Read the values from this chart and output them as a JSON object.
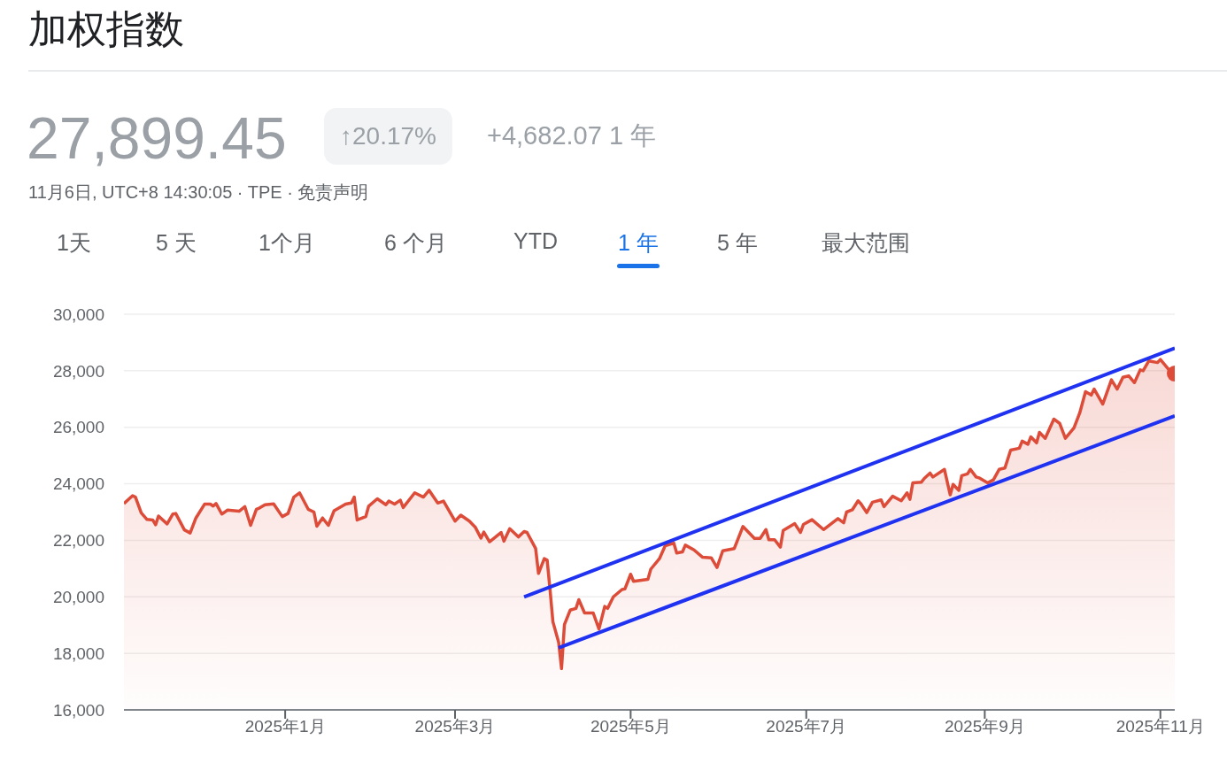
{
  "chart_data": {
    "type": "area",
    "title": "加权指数",
    "annotations": [
      "27,899.45",
      "↑20.17%",
      "+4,682.07 1 年",
      "11月6日, UTC+8 14:30:05 · TPE · 免责声明",
      "1天",
      "5 天",
      "1个月",
      "6 个月",
      "YTD",
      "1 年",
      "5 年",
      "最大范围"
    ],
    "xlim": [
      "2024-11-06",
      "2025-11-06"
    ],
    "xticks": [
      {
        "value": "2025-01",
        "label": "2025年1月"
      },
      {
        "value": "2025-03",
        "label": "2025年3月"
      },
      {
        "value": "2025-05",
        "label": "2025年5月"
      },
      {
        "value": "2025-07",
        "label": "2025年7月"
      },
      {
        "value": "2025-09",
        "label": "2025年9月"
      },
      {
        "value": "2025-11",
        "label": "2025年11月"
      }
    ],
    "ylim": [
      16000,
      30000
    ],
    "yticks": [
      {
        "value": 16000,
        "label": "16,000"
      },
      {
        "value": 18000,
        "label": "18,000"
      },
      {
        "value": 20000,
        "label": "20,000"
      },
      {
        "value": 22000,
        "label": "22,000"
      },
      {
        "value": 24000,
        "label": "24,000"
      },
      {
        "value": 26000,
        "label": "26,000"
      },
      {
        "value": 28000,
        "label": "28,000"
      },
      {
        "value": 30000,
        "label": "30,000"
      }
    ],
    "grid": "y",
    "legend": false,
    "line_style": "solid",
    "series": [
      {
        "color": "#dd4b39",
        "x": [
          "2024-11-06",
          "2024-11-09",
          "2024-11-10",
          "2024-11-12",
          "2024-11-14",
          "2024-11-16",
          "2024-11-17",
          "2024-11-18",
          "2024-11-21",
          "2024-11-23",
          "2024-11-24",
          "2024-11-27",
          "2024-11-29",
          "2024-12-01",
          "2024-12-04",
          "2024-12-06",
          "2024-12-07",
          "2024-12-08",
          "2024-12-10",
          "2024-12-12",
          "2024-12-16",
          "2024-12-18",
          "2024-12-20",
          "2024-12-22",
          "2024-12-23",
          "2024-12-25",
          "2024-12-28",
          "2024-12-31",
          "2025-01-02",
          "2025-01-04",
          "2025-01-06",
          "2025-01-09",
          "2025-01-11",
          "2025-01-12",
          "2025-01-14",
          "2025-01-16",
          "2025-01-18",
          "2025-01-22",
          "2025-01-24",
          "2025-01-25",
          "2025-01-26",
          "2025-01-29",
          "2025-01-30",
          "2025-02-02",
          "2025-02-05",
          "2025-02-06",
          "2025-02-08",
          "2025-02-10",
          "2025-02-11",
          "2025-02-15",
          "2025-02-18",
          "2025-02-20",
          "2025-02-23",
          "2025-02-25",
          "2025-03-01",
          "2025-03-03",
          "2025-03-06",
          "2025-03-08",
          "2025-03-10",
          "2025-03-11",
          "2025-03-13",
          "2025-03-15",
          "2025-03-17",
          "2025-03-18",
          "2025-03-20",
          "2025-03-23",
          "2025-03-25",
          "2025-03-26",
          "2025-03-29",
          "2025-03-30",
          "2025-04-01",
          "2025-04-02",
          "2025-04-03",
          "2025-04-04",
          "2025-04-06",
          "2025-04-07",
          "2025-04-08",
          "2025-04-10",
          "2025-04-12",
          "2025-04-13",
          "2025-04-15",
          "2025-04-18",
          "2025-04-20",
          "2025-04-22",
          "2025-04-23",
          "2025-04-25",
          "2025-04-28",
          "2025-04-29",
          "2025-05-01",
          "2025-05-02",
          "2025-05-07",
          "2025-05-08",
          "2025-05-11",
          "2025-05-13",
          "2025-05-16",
          "2025-05-17",
          "2025-05-19",
          "2025-05-20",
          "2025-05-23",
          "2025-05-26",
          "2025-05-29",
          "2025-05-31",
          "2025-06-02",
          "2025-06-06",
          "2025-06-09",
          "2025-06-13",
          "2025-06-15",
          "2025-06-17",
          "2025-06-18",
          "2025-06-20",
          "2025-06-22",
          "2025-06-23",
          "2025-06-27",
          "2025-06-29",
          "2025-06-30",
          "2025-07-03",
          "2025-07-07",
          "2025-07-12",
          "2025-07-14",
          "2025-07-15",
          "2025-07-17",
          "2025-07-19",
          "2025-07-20",
          "2025-07-22",
          "2025-07-24",
          "2025-07-27",
          "2025-07-28",
          "2025-07-31",
          "2025-08-03",
          "2025-08-05",
          "2025-08-06",
          "2025-08-07",
          "2025-08-10",
          "2025-08-11",
          "2025-08-13",
          "2025-08-14",
          "2025-08-18",
          "2025-08-20",
          "2025-08-21",
          "2025-08-23",
          "2025-08-24",
          "2025-08-26",
          "2025-08-27",
          "2025-08-29",
          "2025-08-30",
          "2025-09-02",
          "2025-09-04",
          "2025-09-06",
          "2025-09-08",
          "2025-09-10",
          "2025-09-13",
          "2025-09-14",
          "2025-09-16",
          "2025-09-17",
          "2025-09-19",
          "2025-09-20",
          "2025-09-22",
          "2025-09-25",
          "2025-09-27",
          "2025-09-29",
          "2025-10-02",
          "2025-10-04",
          "2025-10-06",
          "2025-10-08",
          "2025-10-09",
          "2025-10-12",
          "2025-10-15",
          "2025-10-17",
          "2025-10-19",
          "2025-10-21",
          "2025-10-23",
          "2025-10-25",
          "2025-10-26",
          "2025-10-28",
          "2025-10-31",
          "2025-11-01",
          "2025-11-04",
          "2025-11-06"
        ],
        "values": [
          23300,
          23580,
          23530,
          22970,
          22740,
          22720,
          22550,
          22860,
          22580,
          22930,
          22950,
          22370,
          22260,
          22790,
          23280,
          23280,
          23210,
          23300,
          22930,
          23070,
          23030,
          23190,
          22530,
          23100,
          23140,
          23260,
          23290,
          22840,
          22950,
          23530,
          23680,
          23100,
          23000,
          22500,
          22790,
          22530,
          23050,
          23280,
          23320,
          23530,
          22720,
          22840,
          23210,
          23470,
          23260,
          23390,
          23280,
          23420,
          23160,
          23680,
          23530,
          23770,
          23320,
          23390,
          22680,
          22890,
          22680,
          22470,
          22080,
          22290,
          21950,
          22110,
          22280,
          21970,
          22410,
          22120,
          22310,
          22280,
          21710,
          20830,
          21350,
          21300,
          20260,
          19120,
          18390,
          17460,
          19020,
          19530,
          19590,
          19900,
          19430,
          19430,
          18860,
          19660,
          19590,
          20000,
          20260,
          20280,
          20800,
          20550,
          20620,
          20980,
          21350,
          21810,
          21900,
          21550,
          21590,
          21830,
          21660,
          21400,
          21380,
          21040,
          21630,
          21710,
          22490,
          22070,
          22070,
          22380,
          22020,
          22020,
          21760,
          22350,
          22590,
          22280,
          22560,
          22730,
          22380,
          22770,
          22620,
          23000,
          23080,
          23400,
          23290,
          22980,
          23350,
          23430,
          23190,
          23560,
          23400,
          23680,
          23450,
          24030,
          24060,
          24190,
          24380,
          24240,
          24510,
          23610,
          23980,
          23770,
          24290,
          24350,
          24510,
          24240,
          24210,
          24030,
          24140,
          24510,
          24560,
          25190,
          25260,
          25510,
          25400,
          25660,
          25450,
          25820,
          25610,
          26290,
          26140,
          25610,
          25980,
          26510,
          27260,
          27140,
          27350,
          26820,
          27680,
          27350,
          27770,
          27820,
          27580,
          28030,
          28000,
          28350,
          28290,
          28400,
          28030,
          27900
        ]
      },
      {
        "type": "line",
        "color": "#1f32f2",
        "x": [
          "2025-03-25",
          "2025-11-06"
        ],
        "values": [
          20000,
          28800
        ]
      },
      {
        "type": "line",
        "color": "#1f32f2",
        "x": [
          "2025-04-06",
          "2025-11-06"
        ],
        "values": [
          18200,
          26400
        ]
      }
    ]
  }
}
